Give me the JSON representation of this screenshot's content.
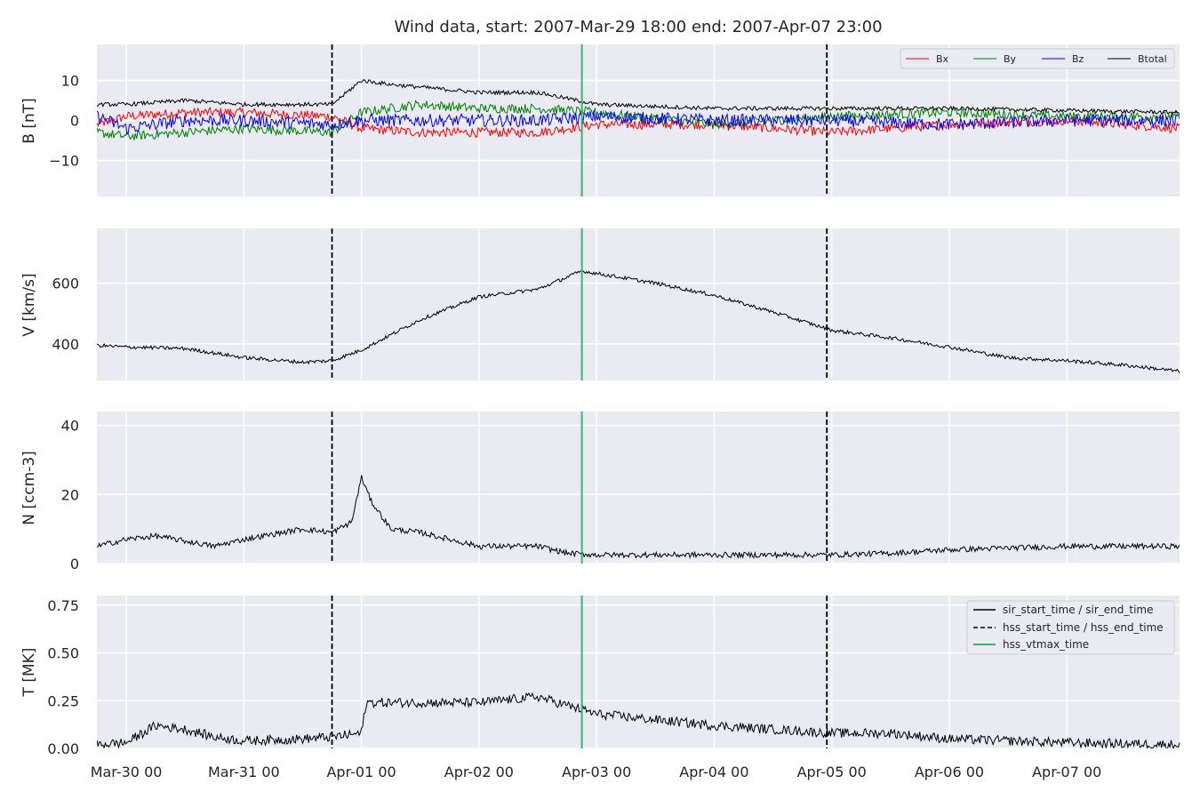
{
  "chart_data": {
    "type": "line",
    "title": "Wind data, start: 2007-Mar-29 18:00  end: 2007-Apr-07 23:00",
    "x_range": [
      "2007-03-29 18:00",
      "2007-04-07 23:00"
    ],
    "x_ticks": [
      {
        "t": "2007-03-30 00:00",
        "label": "Mar-30 00"
      },
      {
        "t": "2007-03-31 00:00",
        "label": "Mar-31 00"
      },
      {
        "t": "2007-04-01 00:00",
        "label": "Apr-01 00"
      },
      {
        "t": "2007-04-02 00:00",
        "label": "Apr-02 00"
      },
      {
        "t": "2007-04-03 00:00",
        "label": "Apr-03 00"
      },
      {
        "t": "2007-04-04 00:00",
        "label": "Apr-04 00"
      },
      {
        "t": "2007-04-05 00:00",
        "label": "Apr-05 00"
      },
      {
        "t": "2007-04-06 00:00",
        "label": "Apr-06 00"
      },
      {
        "t": "2007-04-07 00:00",
        "label": "Apr-07 00"
      }
    ],
    "grid": true,
    "event_lines": [
      {
        "name": "hss_start_time / hss_end_time",
        "time": "2007-03-31 18:00",
        "style": "dashed",
        "color": "#000000"
      },
      {
        "name": "hss_vtmax_time",
        "time": "2007-04-02 21:00",
        "style": "solid",
        "color": "#3cb371"
      },
      {
        "name": "hss_start_time / hss_end_time",
        "time": "2007-04-04 23:00",
        "style": "dashed",
        "color": "#000000"
      }
    ],
    "panels": [
      {
        "id": "B",
        "ylabel": "B [nT]",
        "ylim": [
          -19,
          19
        ],
        "yticks": [
          {
            "v": -10,
            "label": "−10"
          },
          {
            "v": 0,
            "label": "0"
          },
          {
            "v": 10,
            "label": "10"
          }
        ],
        "legend": {
          "placement": "top-right",
          "entries": [
            "Bx",
            "By",
            "Bz",
            "Btotal"
          ]
        },
        "series": [
          {
            "name": "Bx",
            "color": "#ff0000",
            "noise": 1.2,
            "keys": [
              [
                "2007-03-29 18:00",
                -1
              ],
              [
                "2007-03-30 00:00",
                1
              ],
              [
                "2007-03-30 12:00",
                2
              ],
              [
                "2007-03-31 00:00",
                2
              ],
              [
                "2007-03-31 18:00",
                1
              ],
              [
                "2007-04-01 00:00",
                -2
              ],
              [
                "2007-04-01 12:00",
                -3
              ],
              [
                "2007-04-02 00:00",
                -3
              ],
              [
                "2007-04-02 12:00",
                -3
              ],
              [
                "2007-04-03 00:00",
                -1
              ],
              [
                "2007-04-04 00:00",
                -1
              ],
              [
                "2007-04-05 00:00",
                -3
              ],
              [
                "2007-04-05 12:00",
                -2
              ],
              [
                "2007-04-06 00:00",
                -1
              ],
              [
                "2007-04-07 00:00",
                0
              ],
              [
                "2007-04-07 23:00",
                -2
              ]
            ]
          },
          {
            "name": "By",
            "color": "#008000",
            "noise": 1.2,
            "keys": [
              [
                "2007-03-29 18:00",
                -3
              ],
              [
                "2007-03-30 00:00",
                -4
              ],
              [
                "2007-03-30 12:00",
                -3
              ],
              [
                "2007-03-31 00:00",
                -2
              ],
              [
                "2007-03-31 18:00",
                -3
              ],
              [
                "2007-04-01 00:00",
                2
              ],
              [
                "2007-04-01 12:00",
                4
              ],
              [
                "2007-04-02 00:00",
                3
              ],
              [
                "2007-04-02 12:00",
                3
              ],
              [
                "2007-04-03 00:00",
                2
              ],
              [
                "2007-04-04 00:00",
                -1
              ],
              [
                "2007-04-05 00:00",
                1
              ],
              [
                "2007-04-06 00:00",
                2
              ],
              [
                "2007-04-07 00:00",
                1
              ],
              [
                "2007-04-07 23:00",
                1
              ]
            ]
          },
          {
            "name": "Bz",
            "color": "#0000ff",
            "noise": 1.6,
            "keys": [
              [
                "2007-03-29 18:00",
                1
              ],
              [
                "2007-03-30 00:00",
                -2
              ],
              [
                "2007-03-30 12:00",
                0
              ],
              [
                "2007-03-31 00:00",
                0
              ],
              [
                "2007-03-31 18:00",
                -1
              ],
              [
                "2007-04-01 00:00",
                0
              ],
              [
                "2007-04-01 12:00",
                0
              ],
              [
                "2007-04-02 00:00",
                0
              ],
              [
                "2007-04-02 12:00",
                0
              ],
              [
                "2007-04-03 00:00",
                1
              ],
              [
                "2007-04-04 00:00",
                0
              ],
              [
                "2007-04-05 00:00",
                0
              ],
              [
                "2007-04-06 00:00",
                -1
              ],
              [
                "2007-04-07 00:00",
                0
              ],
              [
                "2007-04-07 23:00",
                0
              ]
            ]
          },
          {
            "name": "Btotal",
            "color": "#000000",
            "noise": 0.5,
            "keys": [
              [
                "2007-03-29 18:00",
                4
              ],
              [
                "2007-03-30 00:00",
                4
              ],
              [
                "2007-03-30 12:00",
                5
              ],
              [
                "2007-03-31 00:00",
                4
              ],
              [
                "2007-03-31 18:00",
                4
              ],
              [
                "2007-04-01 00:00",
                10
              ],
              [
                "2007-04-01 06:00",
                9
              ],
              [
                "2007-04-02 00:00",
                7
              ],
              [
                "2007-04-02 12:00",
                7
              ],
              [
                "2007-04-03 00:00",
                4
              ],
              [
                "2007-04-04 00:00",
                3
              ],
              [
                "2007-04-05 00:00",
                3
              ],
              [
                "2007-04-06 00:00",
                3
              ],
              [
                "2007-04-07 00:00",
                2.5
              ],
              [
                "2007-04-07 23:00",
                2
              ]
            ]
          }
        ]
      },
      {
        "id": "V",
        "ylabel": "V [km/s]",
        "ylim": [
          280,
          780
        ],
        "yticks": [
          {
            "v": 400,
            "label": "400"
          },
          {
            "v": 600,
            "label": "600"
          }
        ],
        "series": [
          {
            "name": "V",
            "color": "#000000",
            "noise": 6,
            "keys": [
              [
                "2007-03-29 18:00",
                395
              ],
              [
                "2007-03-30 00:00",
                390
              ],
              [
                "2007-03-30 12:00",
                385
              ],
              [
                "2007-03-31 00:00",
                355
              ],
              [
                "2007-03-31 12:00",
                340
              ],
              [
                "2007-03-31 18:00",
                345
              ],
              [
                "2007-04-01 00:00",
                380
              ],
              [
                "2007-04-01 12:00",
                480
              ],
              [
                "2007-04-02 00:00",
                555
              ],
              [
                "2007-04-02 12:00",
                580
              ],
              [
                "2007-04-02 21:00",
                640
              ],
              [
                "2007-04-03 12:00",
                600
              ],
              [
                "2007-04-04 00:00",
                560
              ],
              [
                "2007-04-04 12:00",
                505
              ],
              [
                "2007-04-05 00:00",
                445
              ],
              [
                "2007-04-05 12:00",
                420
              ],
              [
                "2007-04-06 00:00",
                390
              ],
              [
                "2007-04-06 12:00",
                355
              ],
              [
                "2007-04-07 00:00",
                345
              ],
              [
                "2007-04-07 12:00",
                330
              ],
              [
                "2007-04-07 23:00",
                310
              ]
            ]
          }
        ]
      },
      {
        "id": "N",
        "ylabel": "N [ccm-3]",
        "ylim": [
          0,
          44
        ],
        "yticks": [
          {
            "v": 0,
            "label": "0"
          },
          {
            "v": 20,
            "label": "20"
          },
          {
            "v": 40,
            "label": "40"
          }
        ],
        "series": [
          {
            "name": "N",
            "color": "#000000",
            "noise": 0.8,
            "keys": [
              [
                "2007-03-29 18:00",
                5
              ],
              [
                "2007-03-30 00:00",
                7
              ],
              [
                "2007-03-30 06:00",
                8
              ],
              [
                "2007-03-30 18:00",
                5
              ],
              [
                "2007-03-31 00:00",
                7
              ],
              [
                "2007-03-31 12:00",
                10
              ],
              [
                "2007-03-31 18:00",
                9
              ],
              [
                "2007-03-31 22:00",
                12
              ],
              [
                "2007-04-01 00:00",
                25
              ],
              [
                "2007-04-01 02:00",
                18
              ],
              [
                "2007-04-01 06:00",
                10
              ],
              [
                "2007-04-01 12:00",
                9
              ],
              [
                "2007-04-02 00:00",
                5
              ],
              [
                "2007-04-02 12:00",
                5
              ],
              [
                "2007-04-02 18:00",
                3
              ],
              [
                "2007-04-03 00:00",
                2.5
              ],
              [
                "2007-04-04 00:00",
                2.5
              ],
              [
                "2007-04-05 00:00",
                2.5
              ],
              [
                "2007-04-05 12:00",
                3
              ],
              [
                "2007-04-06 00:00",
                4
              ],
              [
                "2007-04-07 00:00",
                5
              ],
              [
                "2007-04-07 23:00",
                5
              ]
            ]
          }
        ]
      },
      {
        "id": "T",
        "ylabel": "T [MK]",
        "ylim": [
          0,
          0.8
        ],
        "yticks": [
          {
            "v": 0.0,
            "label": "0.00"
          },
          {
            "v": 0.25,
            "label": "0.25"
          },
          {
            "v": 0.5,
            "label": "0.50"
          },
          {
            "v": 0.75,
            "label": "0.75"
          }
        ],
        "legend": {
          "placement": "top-right",
          "entries": [
            "sir_start_time / sir_end_time",
            "hss_start_time / hss_end_time",
            "hss_vtmax_time"
          ]
        },
        "series": [
          {
            "name": "T",
            "color": "#000000",
            "noise": 0.025,
            "keys": [
              [
                "2007-03-29 18:00",
                0.02
              ],
              [
                "2007-03-30 00:00",
                0.03
              ],
              [
                "2007-03-30 06:00",
                0.12
              ],
              [
                "2007-03-30 12:00",
                0.1
              ],
              [
                "2007-03-30 18:00",
                0.06
              ],
              [
                "2007-03-31 00:00",
                0.04
              ],
              [
                "2007-03-31 12:00",
                0.05
              ],
              [
                "2007-03-31 18:00",
                0.06
              ],
              [
                "2007-04-01 00:00",
                0.08
              ],
              [
                "2007-04-01 01:00",
                0.24
              ],
              [
                "2007-04-02 00:00",
                0.24
              ],
              [
                "2007-04-02 12:00",
                0.27
              ],
              [
                "2007-04-03 00:00",
                0.18
              ],
              [
                "2007-04-03 12:00",
                0.15
              ],
              [
                "2007-04-04 00:00",
                0.12
              ],
              [
                "2007-04-04 12:00",
                0.1
              ],
              [
                "2007-04-05 00:00",
                0.08
              ],
              [
                "2007-04-05 12:00",
                0.08
              ],
              [
                "2007-04-06 00:00",
                0.05
              ],
              [
                "2007-04-07 00:00",
                0.03
              ],
              [
                "2007-04-07 23:00",
                0.02
              ]
            ]
          }
        ]
      }
    ]
  }
}
